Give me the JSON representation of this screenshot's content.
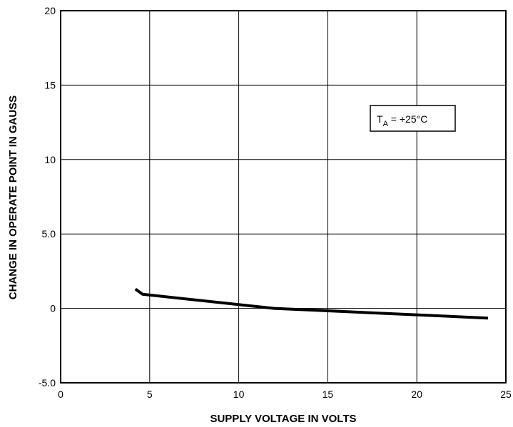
{
  "chart_data": {
    "type": "line",
    "title": "",
    "xlabel": "SUPPLY VOLTAGE IN VOLTS",
    "ylabel": "CHANGE IN OPERATE POINT IN GAUSS",
    "xlim": [
      0,
      25
    ],
    "ylim": [
      -5,
      20
    ],
    "x_ticks": [
      0,
      5,
      10,
      15,
      20,
      25
    ],
    "x_tick_labels": [
      "0",
      "5",
      "10",
      "15",
      "20",
      "25"
    ],
    "y_ticks": [
      -5,
      0,
      5,
      10,
      15,
      20
    ],
    "y_tick_labels": [
      "-5.0",
      "0",
      "5.0",
      "10",
      "15",
      "20"
    ],
    "grid": true,
    "annotation": {
      "subscript_base": "T",
      "subscript": "A",
      "text": " = +25°C"
    },
    "series": [
      {
        "x": [
          4.2,
          4.6,
          12.0,
          24.0
        ],
        "y": [
          1.3,
          0.95,
          0.0,
          -0.65
        ]
      }
    ],
    "colors": {
      "line": "#000000",
      "grid": "#000000",
      "background": "#ffffff"
    }
  }
}
